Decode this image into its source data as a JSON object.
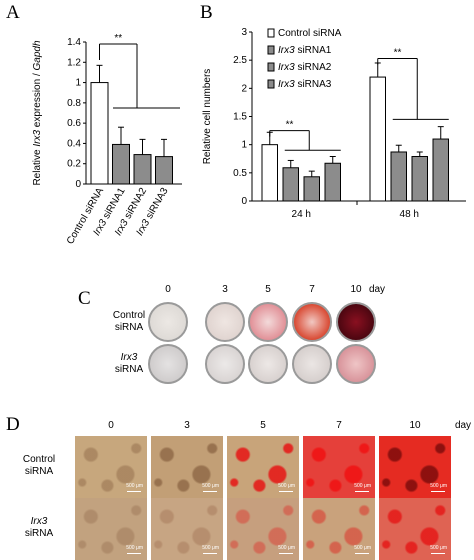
{
  "panels": {
    "a": "A",
    "b": "B",
    "c": "C",
    "d": "D"
  },
  "chart_data": [
    {
      "type": "bar",
      "panel": "A",
      "categories": [
        "Control siRNA",
        "Irx3 siRNA1",
        "Irx3 siRNA2",
        "Irx3 siRNA3"
      ],
      "category_prefix": [
        "Control",
        "Irx3",
        "Irx3",
        "Irx3"
      ],
      "category_suffix": [
        " siRNA",
        " siRNA1",
        " siRNA2",
        " siRNA3"
      ],
      "values": [
        1.0,
        0.39,
        0.29,
        0.27
      ],
      "errors": [
        0.17,
        0.17,
        0.15,
        0.17
      ],
      "colors": [
        "#ffffff",
        "#8c8c8c",
        "#8c8c8c",
        "#8c8c8c"
      ],
      "ylabel_prefix": "Relative ",
      "ylabel_gene": "Irx3",
      "ylabel_mid": " expression / ",
      "ylabel_ref": "Gapdh",
      "ylim": [
        0,
        1.4
      ],
      "yticks": [
        "0",
        "0.2",
        "0.4",
        "0.6",
        "0.8",
        "1",
        "1.2",
        "1.4"
      ],
      "significance": "**"
    },
    {
      "type": "bar",
      "panel": "B",
      "categories": [
        "24 h",
        "48 h"
      ],
      "series": [
        {
          "name": "Control siRNA",
          "prefix": "Control",
          "suffix": " siRNA",
          "color": "#ffffff",
          "values": [
            1.0,
            2.2
          ],
          "errors": [
            0.22,
            0.25
          ]
        },
        {
          "name": "Irx3 siRNA1",
          "prefix": "Irx3",
          "suffix": " siRNA1",
          "color": "#8c8c8c",
          "values": [
            0.59,
            0.87
          ],
          "errors": [
            0.13,
            0.12
          ]
        },
        {
          "name": "Irx3 siRNA2",
          "prefix": "Irx3",
          "suffix": " siRNA2",
          "color": "#8c8c8c",
          "values": [
            0.43,
            0.79
          ],
          "errors": [
            0.1,
            0.08
          ]
        },
        {
          "name": "Irx3 siRNA3",
          "prefix": "Irx3",
          "suffix": " siRNA3",
          "color": "#8c8c8c",
          "values": [
            0.67,
            1.1
          ],
          "errors": [
            0.12,
            0.22
          ]
        }
      ],
      "ylabel": "Relative cell numbers",
      "ylim": [
        0,
        3
      ],
      "yticks": [
        "0",
        "0.5",
        "1",
        "1.5",
        "2",
        "2.5",
        "3"
      ],
      "significance": [
        "**",
        "**"
      ],
      "legend_position": "top-left"
    }
  ],
  "panel_c": {
    "days": [
      "0",
      "3",
      "5",
      "7",
      "10"
    ],
    "day_label": "day",
    "rows": [
      {
        "line1": "Control",
        "line2": "siRNA"
      },
      {
        "line1": "Irx3",
        "line2": "siRNA"
      }
    ]
  },
  "panel_d": {
    "days": [
      "0",
      "3",
      "5",
      "7",
      "10"
    ],
    "day_label": "day",
    "rows": [
      {
        "line1": "Control",
        "line2": "siRNA"
      },
      {
        "line1": "Irx3",
        "line2": "siRNA"
      }
    ],
    "scale_label": "500 μm"
  }
}
